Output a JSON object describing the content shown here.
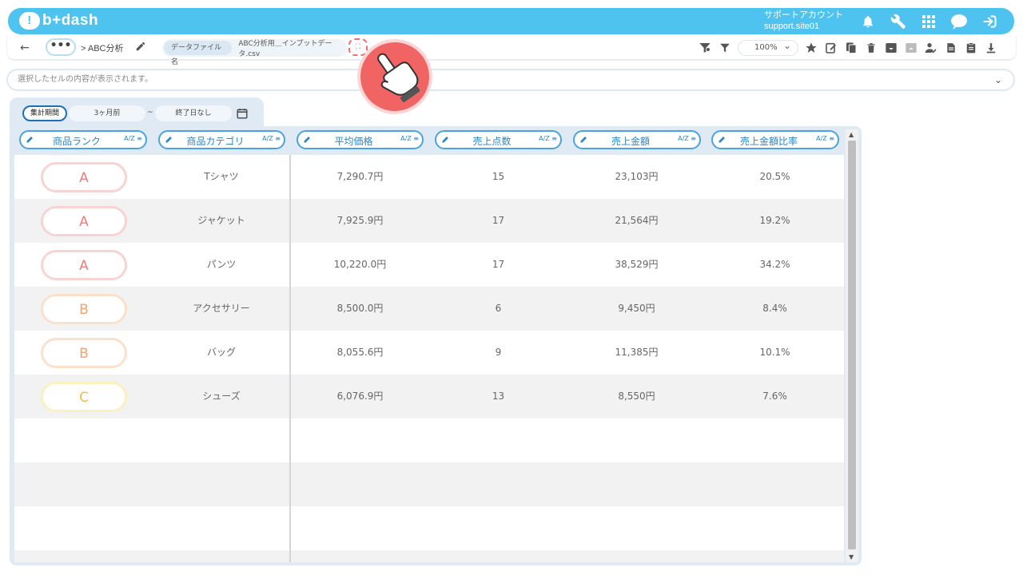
{
  "app": {
    "logo_text": "b+dash",
    "account_line1": "サポートアカウント",
    "account_line2": "support.site01"
  },
  "toolbar": {
    "back_symbol": "←",
    "more_symbol": "•••",
    "breadcrumb": "> ABC分析",
    "file_label": "データファイル名",
    "file_value": "ABC分析用＿インプットデータ.csv",
    "zoom": "100%"
  },
  "cell_display": {
    "placeholder": "選択したセルの内容が表示されます。"
  },
  "period": {
    "label": "集計期間",
    "from": "3ヶ月前",
    "sep": "~",
    "to": "終了日なし"
  },
  "columns": [
    {
      "name": "rank",
      "label": "商品ランク"
    },
    {
      "name": "category",
      "label": "商品カテゴリ"
    },
    {
      "name": "avg-price",
      "label": "平均価格"
    },
    {
      "name": "units",
      "label": "売上点数"
    },
    {
      "name": "amount",
      "label": "売上金額"
    },
    {
      "name": "ratio",
      "label": "売上金額比率"
    }
  ],
  "sort_label": "A/Z ≡",
  "rows": [
    {
      "rank": "A",
      "category": "Tシャツ",
      "avg_price": "7,290.7円",
      "units": "15",
      "amount": "23,103円",
      "ratio": "20.5%"
    },
    {
      "rank": "A",
      "category": "ジャケット",
      "avg_price": "7,925.9円",
      "units": "17",
      "amount": "21,564円",
      "ratio": "19.2%"
    },
    {
      "rank": "A",
      "category": "パンツ",
      "avg_price": "10,220.0円",
      "units": "17",
      "amount": "38,529円",
      "ratio": "34.2%"
    },
    {
      "rank": "B",
      "category": "アクセサリー",
      "avg_price": "8,500.0円",
      "units": "6",
      "amount": "9,450円",
      "ratio": "8.4%"
    },
    {
      "rank": "B",
      "category": "バッグ",
      "avg_price": "8,055.6円",
      "units": "9",
      "amount": "11,385円",
      "ratio": "10.1%"
    },
    {
      "rank": "C",
      "category": "シューズ",
      "avg_price": "6,076.9円",
      "units": "13",
      "amount": "8,550円",
      "ratio": "7.6%"
    }
  ],
  "colors": {
    "brand": "#4ec3f0",
    "accent": "#2a86c9",
    "rankA": "#ef7b7b",
    "rankB": "#f3a36b",
    "rankC": "#f1bd3a",
    "hand": "#f06464"
  }
}
